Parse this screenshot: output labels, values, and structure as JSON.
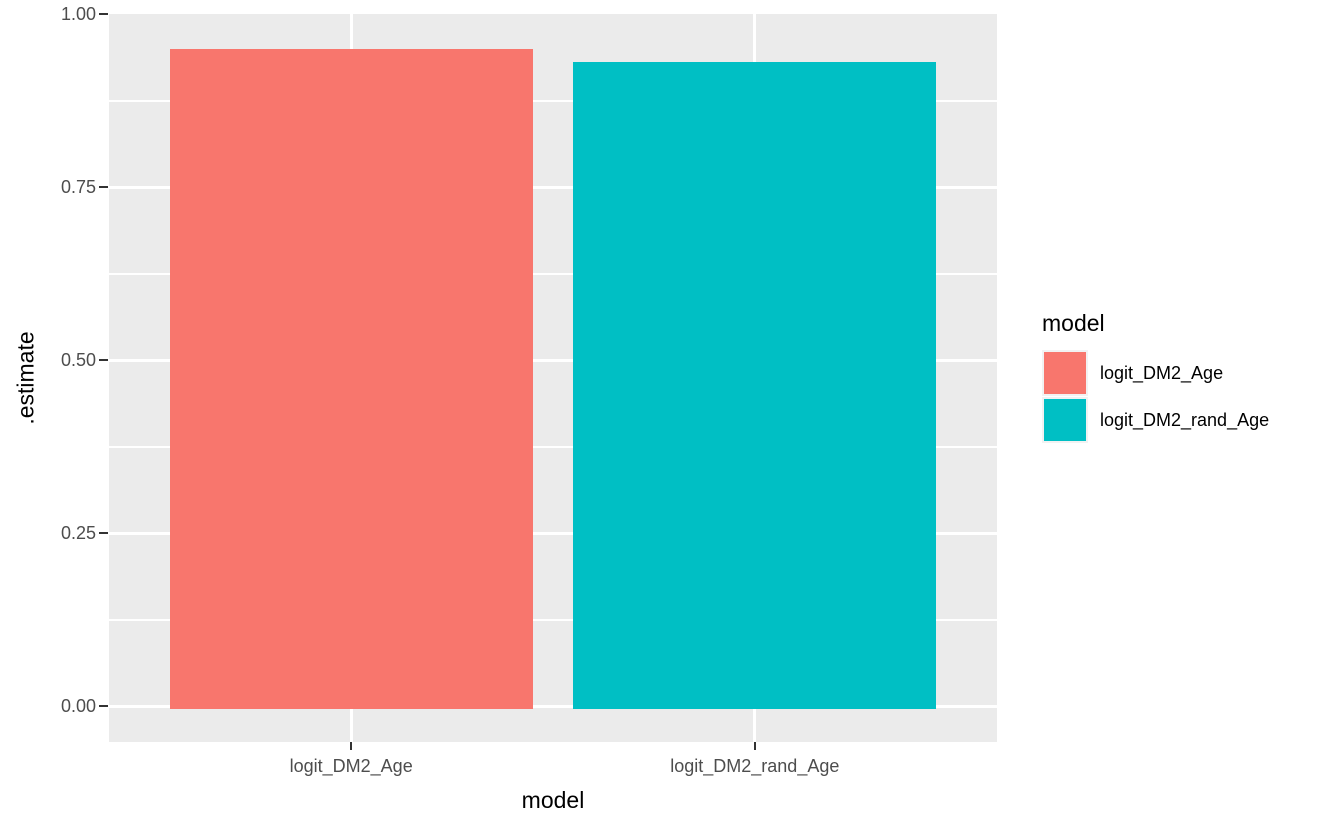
{
  "chart_data": {
    "type": "bar",
    "title": "",
    "xlabel": "model",
    "ylabel": ".estimate",
    "categories": [
      "logit_DM2_Age",
      "logit_DM2_rand_Age"
    ],
    "values": [
      0.95,
      0.93
    ],
    "bar_colors": [
      "#F8766D",
      "#00BFC4"
    ],
    "ylim": [
      -0.052,
      1.0
    ],
    "y_tick_values": [
      0,
      0.25,
      0.5,
      0.75,
      1.0
    ],
    "y_tick_labels": [
      "0.00",
      "0.25",
      "0.50",
      "0.75",
      "1.00"
    ],
    "y_minor_values": [
      0.125,
      0.375,
      0.625,
      0.875
    ],
    "grid": true,
    "legend": {
      "title": "model",
      "position": "right",
      "entries": [
        {
          "label": "logit_DM2_Age",
          "color": "#F8766D"
        },
        {
          "label": "logit_DM2_rand_Age",
          "color": "#00BFC4"
        }
      ]
    },
    "theme": {
      "background": "#FFFFFF",
      "panel_background": "#EBEBEB",
      "grid_color": "#FFFFFF",
      "tick_label_color": "#4D4D4D",
      "axis_title_color": "#000000",
      "tick_mark_color": "#333333"
    }
  }
}
